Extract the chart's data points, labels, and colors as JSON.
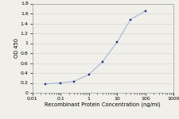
{
  "x": [
    0.03,
    0.1,
    0.3,
    1,
    3,
    10,
    30,
    100
  ],
  "y": [
    0.18,
    0.2,
    0.23,
    0.37,
    0.62,
    1.02,
    1.48,
    1.65
  ],
  "line_color": "#a0b8d8",
  "marker_color": "#1a2f7a",
  "marker_style": "s",
  "marker_size": 2.0,
  "xlabel": "Recombinant Protein Concentration (ng/ml)",
  "ylabel": "OD 450",
  "xlim": [
    0.01,
    1000
  ],
  "ylim": [
    0,
    1.8
  ],
  "yticks": [
    0,
    0.2,
    0.4,
    0.6,
    0.8,
    1.0,
    1.2,
    1.4,
    1.6,
    1.8
  ],
  "xticks": [
    0.01,
    0.1,
    1,
    10,
    100,
    1000
  ],
  "xtick_labels": [
    "0.01",
    "0.1",
    "1",
    "10",
    "100",
    "1000"
  ],
  "grid_color": "#d0d0d0",
  "bg_color": "#f0efea",
  "xlabel_fontsize": 4.8,
  "ylabel_fontsize": 4.8,
  "tick_fontsize": 4.5,
  "linewidth": 0.8
}
